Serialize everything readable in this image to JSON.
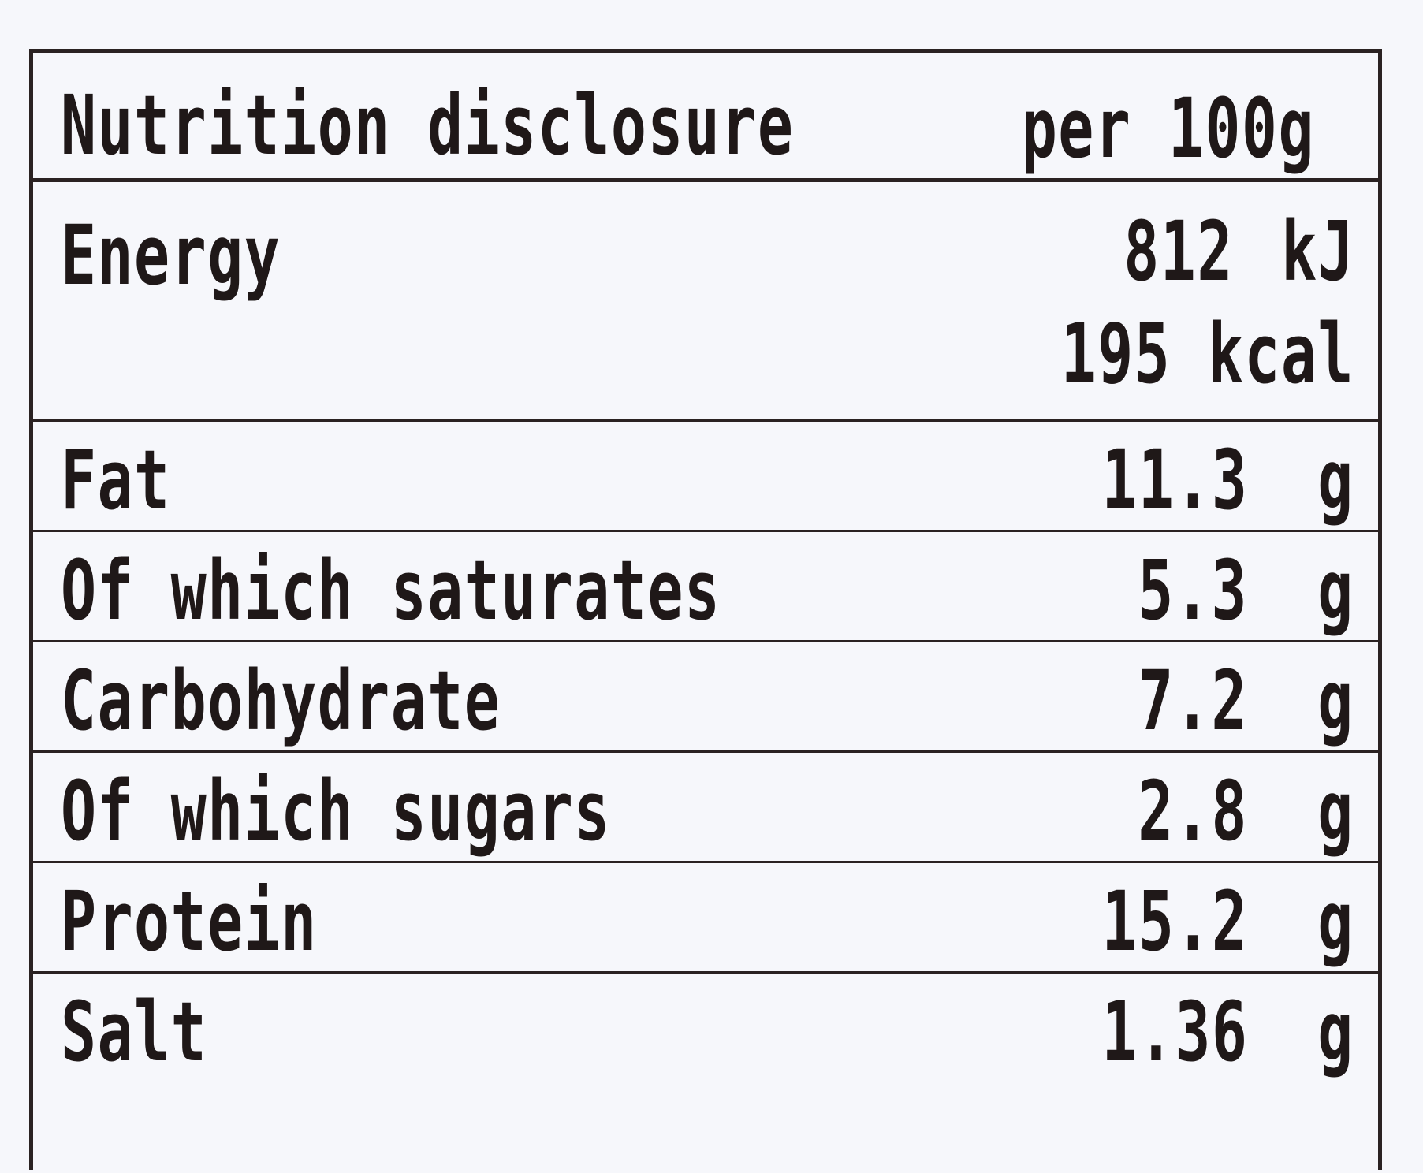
{
  "header": {
    "title": "Nutrition disclosure",
    "basis": "per 100g"
  },
  "rows": [
    {
      "name": "Energy",
      "value": "812",
      "unit": "kJ",
      "value2": "195 kcal"
    },
    {
      "name": "Fat",
      "value": "11.3",
      "unit": "g"
    },
    {
      "name": "Of which saturates",
      "value": "5.3",
      "unit": "g"
    },
    {
      "name": "Carbohydrate",
      "value": "7.2",
      "unit": "g"
    },
    {
      "name": "Of which sugars",
      "value": "2.8",
      "unit": "g"
    },
    {
      "name": "Protein",
      "value": "15.2",
      "unit": "g"
    },
    {
      "name": "Salt",
      "value": "1.36",
      "unit": "g"
    }
  ]
}
